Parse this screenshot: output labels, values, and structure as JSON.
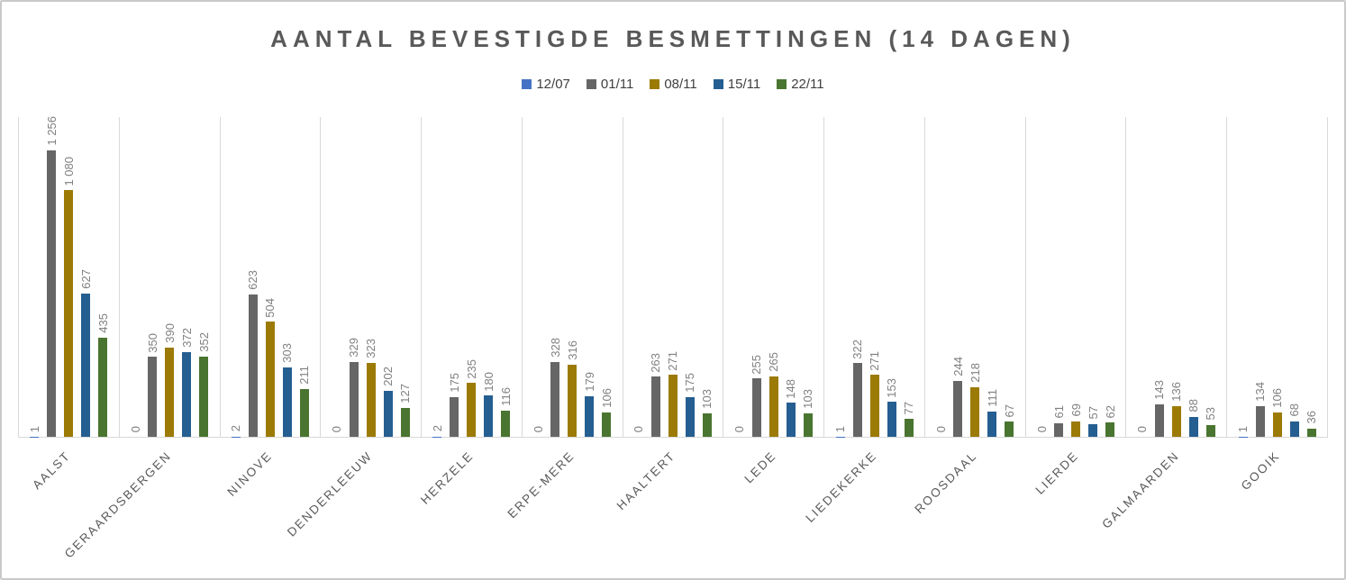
{
  "chart_data": {
    "type": "bar",
    "title": "AANTAL BEVESTIGDE BESMETTINGEN (14 DAGEN)",
    "categories": [
      "AALST",
      "GERAARDSBERGEN",
      "NINOVE",
      "DENDERLEEUW",
      "HERZELE",
      "ERPE-MERE",
      "HAALTERT",
      "LEDE",
      "LIEDEKERKE",
      "ROOSDAAL",
      "LIERDE",
      "GALMAARDEN",
      "GOOIK"
    ],
    "series": [
      {
        "name": "12/07",
        "color": "#4472C4",
        "values": [
          1,
          0,
          2,
          0,
          2,
          0,
          0,
          0,
          1,
          0,
          0,
          0,
          1
        ]
      },
      {
        "name": "01/11",
        "color": "#666666",
        "values": [
          1256,
          350,
          623,
          329,
          175,
          328,
          263,
          255,
          322,
          244,
          61,
          143,
          134
        ]
      },
      {
        "name": "08/11",
        "color": "#9C7A06",
        "values": [
          1080,
          390,
          504,
          323,
          235,
          316,
          271,
          265,
          271,
          218,
          69,
          136,
          106
        ]
      },
      {
        "name": "15/11",
        "color": "#255E91",
        "values": [
          627,
          372,
          303,
          202,
          180,
          179,
          175,
          148,
          153,
          111,
          57,
          88,
          68
        ]
      },
      {
        "name": "22/11",
        "color": "#4A7530",
        "values": [
          435,
          352,
          211,
          127,
          116,
          106,
          103,
          103,
          77,
          67,
          62,
          53,
          36
        ]
      }
    ],
    "ylim": [
      0,
      1400
    ],
    "xlabel": "",
    "ylabel": "",
    "legend_position": "top",
    "grid": {
      "vertical_category_separators": true,
      "horizontal_gridlines": false,
      "line_color": "#D9D9D9"
    },
    "value_labels": {
      "shown": true,
      "rotation_deg": 90,
      "color": "#808080",
      "thousands_separator": " "
    },
    "category_label_rotation_deg": 45,
    "title_color": "#595959",
    "axis_label_color": "#595959"
  }
}
